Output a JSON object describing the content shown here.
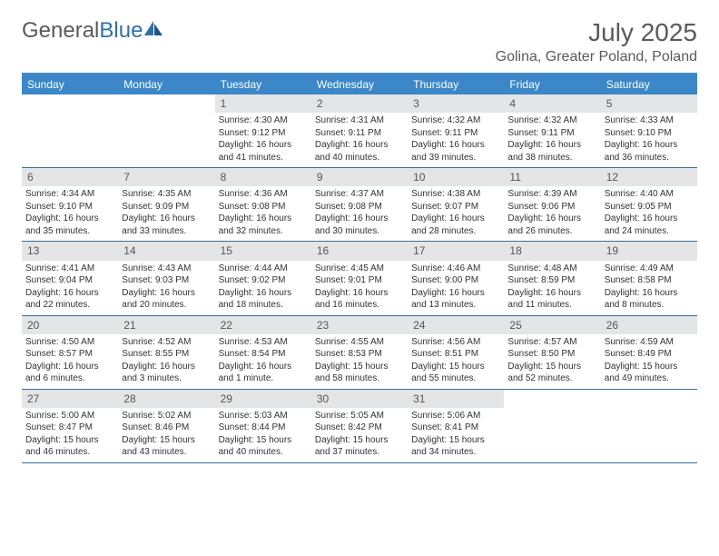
{
  "logo": {
    "text1": "General",
    "text2": "Blue"
  },
  "title": "July 2025",
  "location": "Golina, Greater Poland, Poland",
  "colors": {
    "header_bg": "#3b87c8",
    "header_text": "#ffffff",
    "daynum_bg": "#e4e5e6",
    "border": "#3b6d94",
    "text": "#333333",
    "title_text": "#5a5a5a"
  },
  "dow": [
    "Sunday",
    "Monday",
    "Tuesday",
    "Wednesday",
    "Thursday",
    "Friday",
    "Saturday"
  ],
  "weeks": [
    [
      {
        "n": "",
        "sr": "",
        "ss": "",
        "dl": ""
      },
      {
        "n": "",
        "sr": "",
        "ss": "",
        "dl": ""
      },
      {
        "n": "1",
        "sr": "Sunrise: 4:30 AM",
        "ss": "Sunset: 9:12 PM",
        "dl": "Daylight: 16 hours and 41 minutes."
      },
      {
        "n": "2",
        "sr": "Sunrise: 4:31 AM",
        "ss": "Sunset: 9:11 PM",
        "dl": "Daylight: 16 hours and 40 minutes."
      },
      {
        "n": "3",
        "sr": "Sunrise: 4:32 AM",
        "ss": "Sunset: 9:11 PM",
        "dl": "Daylight: 16 hours and 39 minutes."
      },
      {
        "n": "4",
        "sr": "Sunrise: 4:32 AM",
        "ss": "Sunset: 9:11 PM",
        "dl": "Daylight: 16 hours and 38 minutes."
      },
      {
        "n": "5",
        "sr": "Sunrise: 4:33 AM",
        "ss": "Sunset: 9:10 PM",
        "dl": "Daylight: 16 hours and 36 minutes."
      }
    ],
    [
      {
        "n": "6",
        "sr": "Sunrise: 4:34 AM",
        "ss": "Sunset: 9:10 PM",
        "dl": "Daylight: 16 hours and 35 minutes."
      },
      {
        "n": "7",
        "sr": "Sunrise: 4:35 AM",
        "ss": "Sunset: 9:09 PM",
        "dl": "Daylight: 16 hours and 33 minutes."
      },
      {
        "n": "8",
        "sr": "Sunrise: 4:36 AM",
        "ss": "Sunset: 9:08 PM",
        "dl": "Daylight: 16 hours and 32 minutes."
      },
      {
        "n": "9",
        "sr": "Sunrise: 4:37 AM",
        "ss": "Sunset: 9:08 PM",
        "dl": "Daylight: 16 hours and 30 minutes."
      },
      {
        "n": "10",
        "sr": "Sunrise: 4:38 AM",
        "ss": "Sunset: 9:07 PM",
        "dl": "Daylight: 16 hours and 28 minutes."
      },
      {
        "n": "11",
        "sr": "Sunrise: 4:39 AM",
        "ss": "Sunset: 9:06 PM",
        "dl": "Daylight: 16 hours and 26 minutes."
      },
      {
        "n": "12",
        "sr": "Sunrise: 4:40 AM",
        "ss": "Sunset: 9:05 PM",
        "dl": "Daylight: 16 hours and 24 minutes."
      }
    ],
    [
      {
        "n": "13",
        "sr": "Sunrise: 4:41 AM",
        "ss": "Sunset: 9:04 PM",
        "dl": "Daylight: 16 hours and 22 minutes."
      },
      {
        "n": "14",
        "sr": "Sunrise: 4:43 AM",
        "ss": "Sunset: 9:03 PM",
        "dl": "Daylight: 16 hours and 20 minutes."
      },
      {
        "n": "15",
        "sr": "Sunrise: 4:44 AM",
        "ss": "Sunset: 9:02 PM",
        "dl": "Daylight: 16 hours and 18 minutes."
      },
      {
        "n": "16",
        "sr": "Sunrise: 4:45 AM",
        "ss": "Sunset: 9:01 PM",
        "dl": "Daylight: 16 hours and 16 minutes."
      },
      {
        "n": "17",
        "sr": "Sunrise: 4:46 AM",
        "ss": "Sunset: 9:00 PM",
        "dl": "Daylight: 16 hours and 13 minutes."
      },
      {
        "n": "18",
        "sr": "Sunrise: 4:48 AM",
        "ss": "Sunset: 8:59 PM",
        "dl": "Daylight: 16 hours and 11 minutes."
      },
      {
        "n": "19",
        "sr": "Sunrise: 4:49 AM",
        "ss": "Sunset: 8:58 PM",
        "dl": "Daylight: 16 hours and 8 minutes."
      }
    ],
    [
      {
        "n": "20",
        "sr": "Sunrise: 4:50 AM",
        "ss": "Sunset: 8:57 PM",
        "dl": "Daylight: 16 hours and 6 minutes."
      },
      {
        "n": "21",
        "sr": "Sunrise: 4:52 AM",
        "ss": "Sunset: 8:55 PM",
        "dl": "Daylight: 16 hours and 3 minutes."
      },
      {
        "n": "22",
        "sr": "Sunrise: 4:53 AM",
        "ss": "Sunset: 8:54 PM",
        "dl": "Daylight: 16 hours and 1 minute."
      },
      {
        "n": "23",
        "sr": "Sunrise: 4:55 AM",
        "ss": "Sunset: 8:53 PM",
        "dl": "Daylight: 15 hours and 58 minutes."
      },
      {
        "n": "24",
        "sr": "Sunrise: 4:56 AM",
        "ss": "Sunset: 8:51 PM",
        "dl": "Daylight: 15 hours and 55 minutes."
      },
      {
        "n": "25",
        "sr": "Sunrise: 4:57 AM",
        "ss": "Sunset: 8:50 PM",
        "dl": "Daylight: 15 hours and 52 minutes."
      },
      {
        "n": "26",
        "sr": "Sunrise: 4:59 AM",
        "ss": "Sunset: 8:49 PM",
        "dl": "Daylight: 15 hours and 49 minutes."
      }
    ],
    [
      {
        "n": "27",
        "sr": "Sunrise: 5:00 AM",
        "ss": "Sunset: 8:47 PM",
        "dl": "Daylight: 15 hours and 46 minutes."
      },
      {
        "n": "28",
        "sr": "Sunrise: 5:02 AM",
        "ss": "Sunset: 8:46 PM",
        "dl": "Daylight: 15 hours and 43 minutes."
      },
      {
        "n": "29",
        "sr": "Sunrise: 5:03 AM",
        "ss": "Sunset: 8:44 PM",
        "dl": "Daylight: 15 hours and 40 minutes."
      },
      {
        "n": "30",
        "sr": "Sunrise: 5:05 AM",
        "ss": "Sunset: 8:42 PM",
        "dl": "Daylight: 15 hours and 37 minutes."
      },
      {
        "n": "31",
        "sr": "Sunrise: 5:06 AM",
        "ss": "Sunset: 8:41 PM",
        "dl": "Daylight: 15 hours and 34 minutes."
      },
      {
        "n": "",
        "sr": "",
        "ss": "",
        "dl": ""
      },
      {
        "n": "",
        "sr": "",
        "ss": "",
        "dl": ""
      }
    ]
  ]
}
